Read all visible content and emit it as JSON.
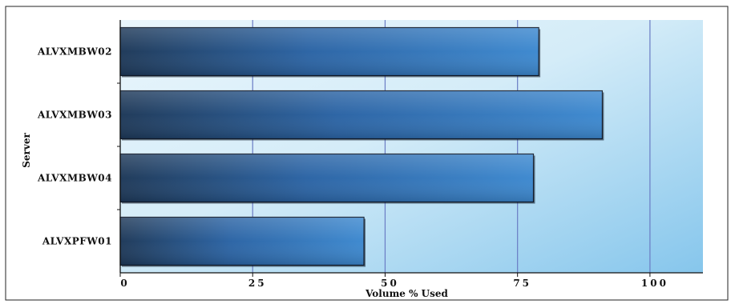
{
  "chart_data": {
    "type": "bar",
    "orientation": "horizontal",
    "title": "",
    "categories": [
      "ALVXMBW02",
      "ALVXMBW03",
      "ALVXMBW04",
      "ALVXPFW01"
    ],
    "values": [
      79,
      91,
      78,
      46
    ],
    "xlabel": "Volume % Used",
    "ylabel": "Server",
    "xlim": [
      0,
      110
    ],
    "xticks": [
      0,
      25,
      50,
      75,
      100
    ],
    "xtick_labels": [
      "0",
      "25",
      "50",
      "75",
      "100"
    ],
    "grid": true,
    "legend": "none",
    "colors": {
      "bar_dark": "#1e3f68",
      "bar_light": "#3a85cc",
      "bar_edge": "#101a2a",
      "plot_bg_light": "#e3f3fb",
      "plot_bg_dark": "#8fcaed",
      "grid": "#6a7cc4",
      "title": "#1a2f7a"
    }
  }
}
